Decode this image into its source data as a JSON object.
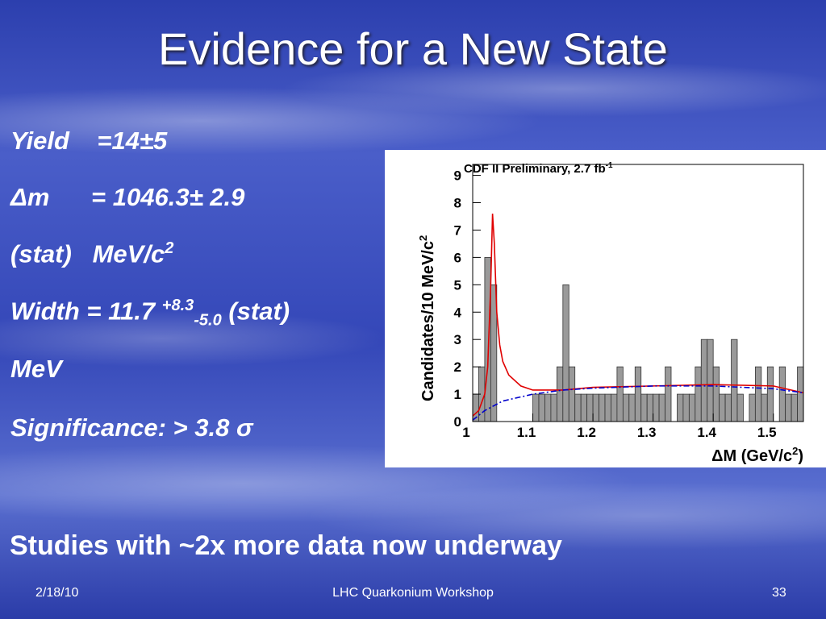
{
  "title": "Evidence for a New State",
  "results": {
    "yield": "Yield    =14±5",
    "delta_m": "Δm      = 1046.3± 2.9",
    "delta_m_unit": "(stat)   MeV/c",
    "delta_m_unit_sup": "2",
    "width": "Width = 11.7 ",
    "width_sup": "+8.3",
    "width_sub": "-5.0",
    "width_stat": " (stat)",
    "width_unit": "MeV",
    "significance": "Significance: > 3.8 σ"
  },
  "note": "Studies with ~2x more data now underway",
  "footer": {
    "date": "2/18/10",
    "event": "LHC Quarkonium Workshop",
    "page": "33"
  },
  "chart_data": {
    "type": "histogram",
    "title": "CDF II Preliminary, 2.7 fb",
    "title_sup": "-1",
    "ylabel": "Candidates/10 MeV/c",
    "ylabel_sup": "2",
    "xlabel": "ΔM  (GeV/c",
    "xlabel_sup": "2",
    "xlabel_end": ")",
    "bins": [
      1.0,
      1.01,
      1.02,
      1.03,
      1.04,
      1.05,
      1.06,
      1.07,
      1.08,
      1.09,
      1.1,
      1.11,
      1.12,
      1.13,
      1.14,
      1.15,
      1.16,
      1.17,
      1.18,
      1.19,
      1.2,
      1.21,
      1.22,
      1.23,
      1.24,
      1.25,
      1.26,
      1.27,
      1.28,
      1.29,
      1.3,
      1.31,
      1.32,
      1.33,
      1.34,
      1.35,
      1.36,
      1.37,
      1.38,
      1.39,
      1.4,
      1.41,
      1.42,
      1.43,
      1.44,
      1.45,
      1.46,
      1.47,
      1.48,
      1.49,
      1.5,
      1.51,
      1.52,
      1.53,
      1.54,
      1.55
    ],
    "counts": [
      1,
      2,
      6,
      5,
      0,
      0,
      0,
      0,
      0,
      0,
      1,
      1,
      1,
      1,
      2,
      5,
      2,
      1,
      1,
      1,
      1,
      1,
      1,
      1,
      2,
      1,
      1,
      2,
      1,
      1,
      1,
      1,
      2,
      0,
      1,
      1,
      1,
      2,
      3,
      3,
      2,
      1,
      1,
      3,
      1,
      0,
      1,
      2,
      1,
      2,
      0,
      2,
      1,
      1,
      2
    ],
    "color": "#9a9a9a",
    "fits": [
      {
        "x": [
          1.0,
          1.01,
          1.02,
          1.025,
          1.03,
          1.033,
          1.036,
          1.04,
          1.045,
          1.05,
          1.06,
          1.08,
          1.1,
          1.15,
          1.2,
          1.3,
          1.4,
          1.5,
          1.55
        ],
        "values": [
          0.2,
          0.4,
          1.0,
          2.0,
          5.0,
          7.6,
          6.5,
          4.0,
          2.8,
          2.2,
          1.7,
          1.3,
          1.15,
          1.15,
          1.25,
          1.3,
          1.35,
          1.3,
          1.05
        ],
        "color": "#e00000",
        "dash": false
      },
      {
        "x": [
          1.0,
          1.02,
          1.05,
          1.1,
          1.15,
          1.2,
          1.3,
          1.4,
          1.5,
          1.55
        ],
        "values": [
          0.05,
          0.4,
          0.75,
          1.0,
          1.15,
          1.22,
          1.3,
          1.3,
          1.2,
          1.05
        ],
        "color": "#0000cc",
        "dash": true
      }
    ],
    "xlim": [
      1.0,
      1.55
    ],
    "ylim": [
      0,
      9.4
    ],
    "xticks": [
      1,
      1.1,
      1.2,
      1.3,
      1.4,
      1.5
    ],
    "yticks": [
      0,
      1,
      2,
      3,
      4,
      5,
      6,
      7,
      8,
      9
    ]
  }
}
